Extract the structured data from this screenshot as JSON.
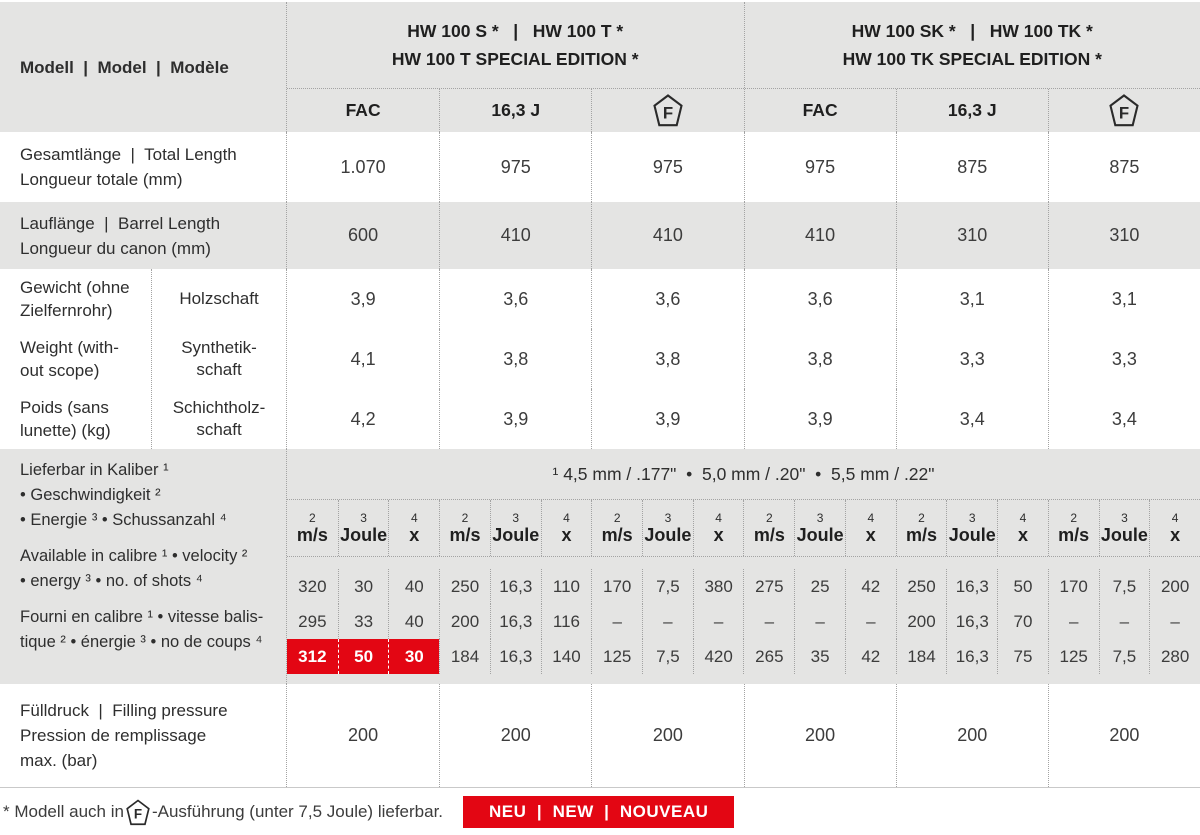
{
  "header": {
    "model_label": "Modell  |  Model  |  Modèle",
    "groups": [
      {
        "line1": "HW 100 S *   |   HW 100 T *",
        "line2": "HW 100 T SPECIAL EDITION *"
      },
      {
        "line1": "HW 100 SK *   |   HW 100 TK *",
        "line2": "HW 100 TK SPECIAL EDITION *"
      }
    ],
    "variants": [
      "FAC",
      "16,3 J",
      "F",
      "FAC",
      "16,3 J",
      "F"
    ]
  },
  "rows": [
    {
      "label_lines": [
        "Gesamtlänge  |  Total Length",
        "Longueur totale (mm)"
      ],
      "values": [
        "1.070",
        "975",
        "975",
        "975",
        "875",
        "875"
      ]
    },
    {
      "label_lines": [
        "Lauflänge  |  Barrel Length",
        "Longueur du canon (mm)"
      ],
      "values": [
        "600",
        "410",
        "410",
        "410",
        "310",
        "310"
      ]
    }
  ],
  "weight": {
    "label_paragraphs": [
      [
        "Gewicht (ohne",
        "Zielfernrohr)"
      ],
      [
        "Weight (with-",
        "out scope)"
      ],
      [
        "Poids (sans",
        "lunette) (kg)"
      ]
    ],
    "subrows": [
      {
        "label_lines": [
          "Holzschaft"
        ],
        "values": [
          "3,9",
          "3,6",
          "3,6",
          "3,6",
          "3,1",
          "3,1"
        ]
      },
      {
        "label_lines": [
          "Synthetik-",
          "schaft"
        ],
        "values": [
          "4,1",
          "3,8",
          "3,8",
          "3,8",
          "3,3",
          "3,3"
        ]
      },
      {
        "label_lines": [
          "Schichtholz-",
          "schaft"
        ],
        "values": [
          "4,2",
          "3,9",
          "3,9",
          "3,9",
          "3,4",
          "3,4"
        ]
      }
    ]
  },
  "caliber": {
    "label_paragraphs": [
      [
        "Lieferbar in Kaliber ¹",
        "•  Geschwindigkeit ²",
        "•  Energie ³  •  Schussanzahl ⁴"
      ],
      [
        "Available in calibre ¹  •  velocity ²",
        "•  energy ³  •  no. of shots ⁴"
      ],
      [
        "Fourni en calibre ¹ •  vitesse balis-",
        "tique ² •  énergie ³ •  no de coups ⁴"
      ]
    ],
    "calibers_line": "¹ 4,5 mm / .177\"  •  5,0 mm / .20\"  •  5,5 mm / .22\"",
    "unit_cols": [
      {
        "sup": "2",
        "label": "m/s"
      },
      {
        "sup": "3",
        "label": "Joule"
      },
      {
        "sup": "4",
        "label": "x"
      }
    ],
    "data_rows": [
      [
        "320",
        "30",
        "40",
        "250",
        "16,3",
        "110",
        "170",
        "7,5",
        "380",
        "275",
        "25",
        "42",
        "250",
        "16,3",
        "50",
        "170",
        "7,5",
        "200"
      ],
      [
        "295",
        "33",
        "40",
        "200",
        "16,3",
        "116",
        "–",
        "–",
        "–",
        "–",
        "–",
        "–",
        "200",
        "16,3",
        "70",
        "–",
        "–",
        "–"
      ],
      [
        "312",
        "50",
        "30",
        "184",
        "16,3",
        "140",
        "125",
        "7,5",
        "420",
        "265",
        "35",
        "42",
        "184",
        "16,3",
        "75",
        "125",
        "7,5",
        "280"
      ]
    ],
    "highlight": {
      "row": 2,
      "cols": [
        0,
        1,
        2
      ]
    }
  },
  "pressure": {
    "label_lines": [
      "Fülldruck  |  Filling pressure",
      "Pression de remplissage",
      "max. (bar)"
    ],
    "values": [
      "200",
      "200",
      "200",
      "200",
      "200",
      "200"
    ]
  },
  "footer": {
    "note_prefix": "* Modell auch in",
    "note_suffix": "-Ausführung (unter 7,5 Joule) lieferbar.",
    "badge": "NEU  |  NEW  |  NOUVEAU"
  },
  "icons": {
    "f_letter": "F"
  },
  "colors": {
    "accent_red": "#e30613",
    "row_gray": "#e4e4e3"
  }
}
